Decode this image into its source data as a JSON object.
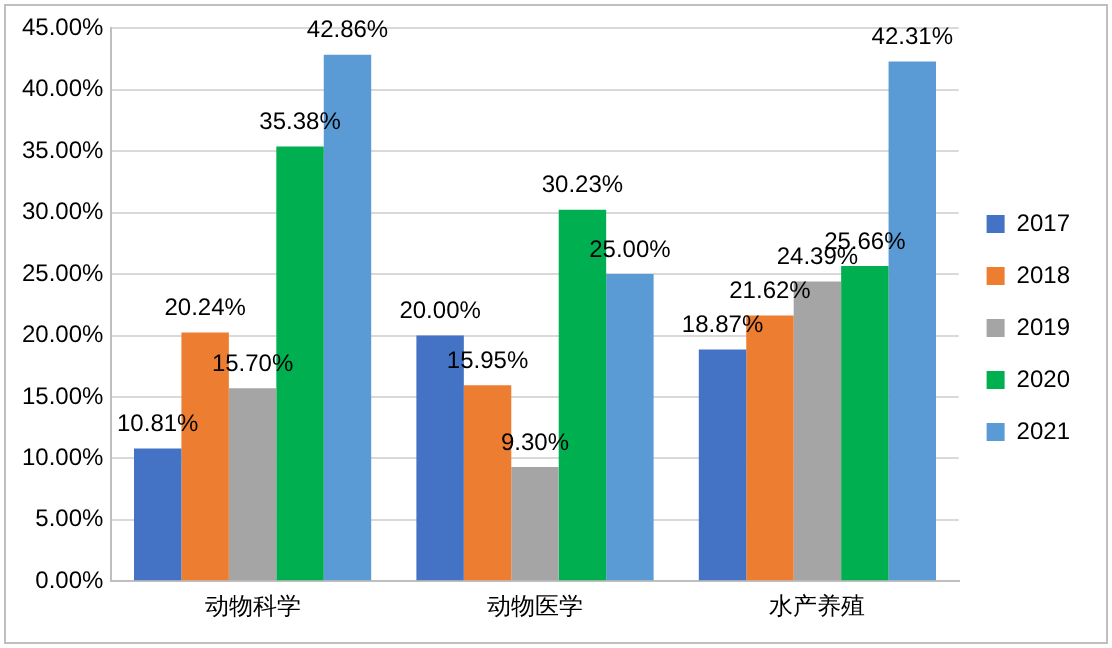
{
  "chart_data": {
    "type": "bar",
    "categories": [
      "动物科学",
      "动物医学",
      "水产养殖"
    ],
    "series": [
      {
        "name": "2017",
        "color": "#4472c4",
        "values": [
          10.81,
          20.0,
          18.87
        ],
        "value_labels": [
          "10.81%",
          "20.00%",
          "18.87%"
        ]
      },
      {
        "name": "2018",
        "color": "#ed7d31",
        "values": [
          20.24,
          15.95,
          21.62
        ],
        "value_labels": [
          "20.24%",
          "15.95%",
          "21.62%"
        ]
      },
      {
        "name": "2019",
        "color": "#a5a5a5",
        "values": [
          15.7,
          9.3,
          24.39
        ],
        "value_labels": [
          "15.70%",
          "9.30%",
          "24.39%"
        ]
      },
      {
        "name": "2020",
        "color": "#00b050",
        "values": [
          35.38,
          30.23,
          25.66
        ],
        "value_labels": [
          "35.38%",
          "30.23%",
          "25.66%"
        ]
      },
      {
        "name": "2021",
        "color": "#5b9bd5",
        "values": [
          42.86,
          25.0,
          42.31
        ],
        "value_labels": [
          "42.86%",
          "25.00%",
          "42.31%"
        ]
      }
    ],
    "ylim": [
      0,
      45
    ],
    "yticks": [
      {
        "value": 0,
        "label": "0.00%"
      },
      {
        "value": 5,
        "label": "5.00%"
      },
      {
        "value": 10,
        "label": "10.00%"
      },
      {
        "value": 15,
        "label": "15.00%"
      },
      {
        "value": 20,
        "label": "20.00%"
      },
      {
        "value": 25,
        "label": "25.00%"
      },
      {
        "value": 30,
        "label": "30.00%"
      },
      {
        "value": 35,
        "label": "35.00%"
      },
      {
        "value": 40,
        "label": "40.00%"
      },
      {
        "value": 45,
        "label": "45.00%"
      }
    ],
    "grid": "y",
    "legend": "right"
  }
}
